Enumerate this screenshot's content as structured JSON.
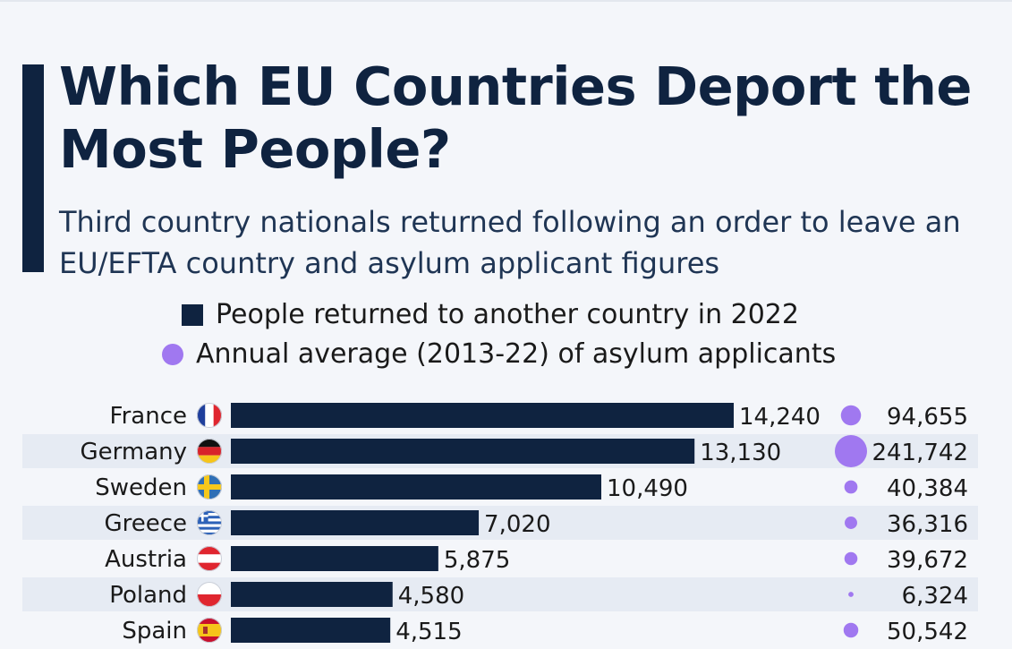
{
  "chart_data": {
    "type": "bar",
    "title": "Which EU Countries Deport the Most People?",
    "subtitle": "Third country nationals returned following an order to leave an EU/EFTA country and asylum applicant figures",
    "legend": [
      {
        "label": "People returned to another country in 2022",
        "marker": "square",
        "color": "#0f2340"
      },
      {
        "label": "Annual average (2013-22) of asylum applicants",
        "marker": "circle",
        "color": "#a078f0"
      }
    ],
    "categories": [
      "France",
      "Germany",
      "Sweden",
      "Greece",
      "Austria",
      "Poland",
      "Spain"
    ],
    "flags": [
      "france-flag",
      "germany-flag",
      "sweden-flag",
      "greece-flag",
      "austria-flag",
      "poland-flag",
      "spain-flag"
    ],
    "series": [
      {
        "name": "People returned to another country in 2022",
        "values": [
          14240,
          13130,
          10490,
          7020,
          5875,
          4580,
          4515
        ],
        "labels": [
          "14,240",
          "13,130",
          "10,490",
          "7,020",
          "5,875",
          "4,580",
          "4,515"
        ],
        "color": "#0f2340"
      },
      {
        "name": "Annual average (2013-22) of asylum applicants",
        "values": [
          94655,
          241742,
          40384,
          36316,
          39672,
          6324,
          50542
        ],
        "labels": [
          "94,655",
          "241,742",
          "40,384",
          "36,316",
          "39,672",
          "6,324",
          "50,542"
        ],
        "color": "#a078f0"
      }
    ],
    "alternating_row_color": "#e6ebf3"
  }
}
